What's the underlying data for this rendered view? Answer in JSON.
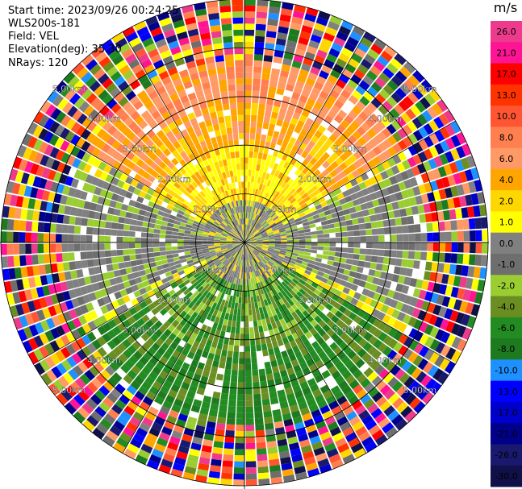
{
  "header": {
    "start_time": "Start time: 2023/09/26 00:24:25",
    "instrument": "WLS200s-181",
    "field": "Field: VEL",
    "elevation": "Elevation(deg): 35.30",
    "nrays": "NRays: 120"
  },
  "colorbar": {
    "unit": "m/s",
    "ticks": [
      "26.0",
      "21.0",
      "17.0",
      "13.0",
      "10.0",
      "8.0",
      "6.0",
      "4.0",
      "2.0",
      "1.0",
      "0.0",
      "-1.0",
      "-2.0",
      "-4.0",
      "-6.0",
      "-8.0",
      "-10.0",
      "-13.0",
      "-17.0",
      "-21.0",
      "-26.0",
      "-30.0"
    ],
    "colors": [
      "#ee3a8c",
      "#ff1493",
      "#ff0000",
      "#ff3300",
      "#ff5533",
      "#ff7f50",
      "#ff9966",
      "#ffa500",
      "#ffd700",
      "#ffff00",
      "#808080",
      "#6e6e6e",
      "#9acd32",
      "#6b8e23",
      "#228b22",
      "#1e7a1e",
      "#1e90ff",
      "#0000ff",
      "#0000cd",
      "#00008b",
      "#191970",
      "#10104a"
    ]
  },
  "chart_data": {
    "type": "ppi",
    "field": "VEL",
    "units": "m/s",
    "elevation_deg": 35.3,
    "n_rays": 120,
    "range_rings_km": [
      1.0,
      2.0,
      3.0,
      4.0,
      5.0
    ],
    "range_ring_labels": [
      "1.00km",
      "2.00km",
      "3.00km",
      "4.00km",
      "5.00km"
    ],
    "max_range_km": 5.0,
    "vmin": -30.0,
    "vmax": 30.0,
    "bands": [
      {
        "r_min_km": 0.0,
        "r_max_km": 1.0,
        "description": "near-zero mixed"
      },
      {
        "r_min_km": 1.0,
        "r_max_km": 3.7,
        "sector_north": "positive 2-8 m/s",
        "sector_south": "negative -2 to -8 m/s",
        "sector_east_west": "near 0 m/s"
      },
      {
        "r_min_km": 3.7,
        "r_max_km": 5.0,
        "description": "noise / aliased full range"
      }
    ]
  }
}
